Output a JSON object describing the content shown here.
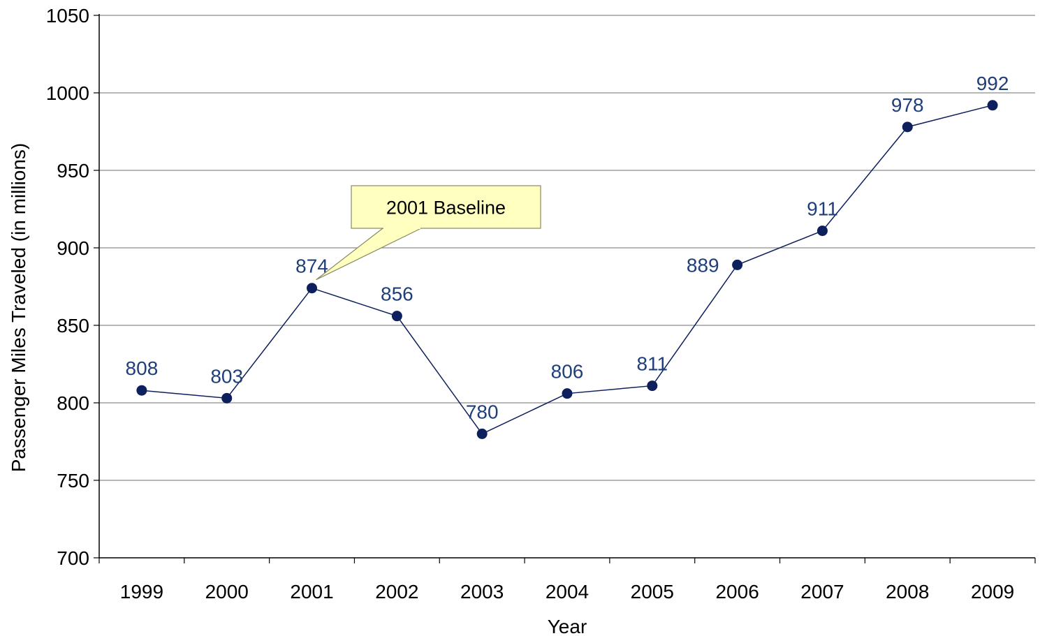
{
  "chart_data": {
    "type": "line",
    "xlabel": "Year",
    "ylabel": "Passenger Miles Traveled (in millions)",
    "ylim": [
      700,
      1050
    ],
    "yticks": [
      "700",
      "750",
      "800",
      "850",
      "900",
      "950",
      "1000",
      "1050"
    ],
    "categories": [
      "1999",
      "2000",
      "2001",
      "2002",
      "2003",
      "2004",
      "2005",
      "2006",
      "2007",
      "2008",
      "2009"
    ],
    "series": [
      {
        "values": [
          808,
          803,
          874,
          856,
          780,
          806,
          811,
          889,
          911,
          978,
          992
        ],
        "labels": [
          "808",
          "803",
          "874",
          "856",
          "780",
          "806",
          "811",
          "889",
          "911",
          "978",
          "992"
        ],
        "color": "#0d1f5c",
        "label_color": "#1f3f7a"
      }
    ],
    "grid": true,
    "legend": "none",
    "annotation": {
      "text": "2001 Baseline",
      "target_category": "2001",
      "fill": "#ffffc0",
      "border": "#888866"
    }
  }
}
